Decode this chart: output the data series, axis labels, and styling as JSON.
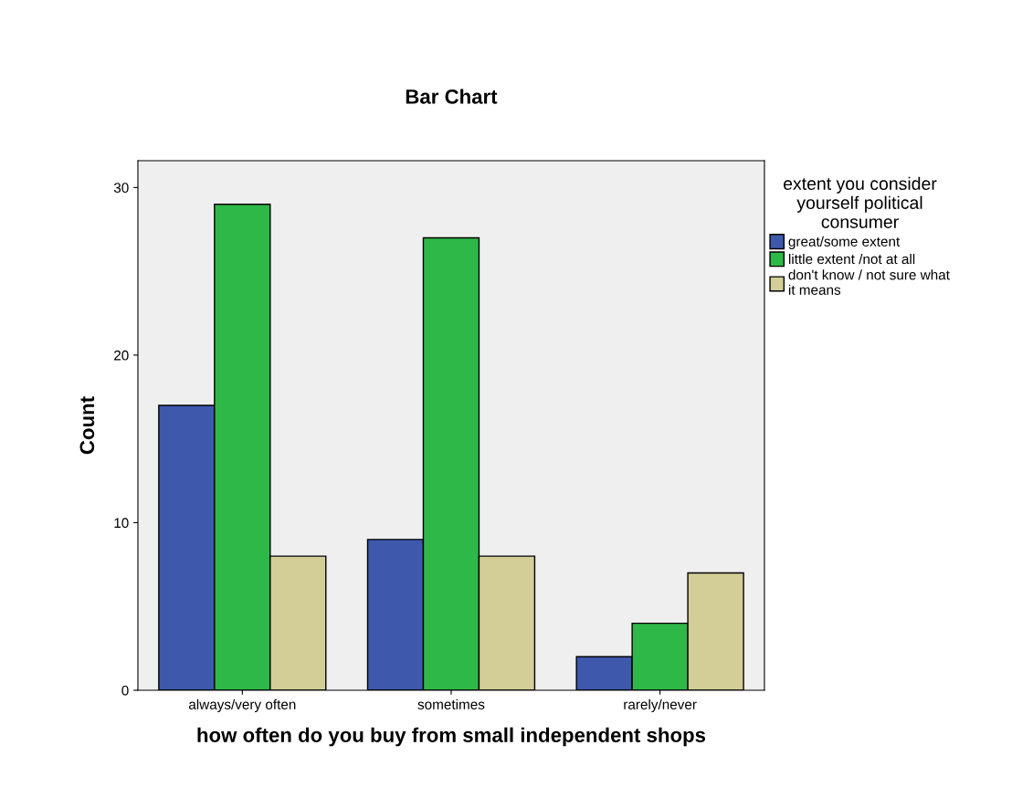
{
  "chart_data": {
    "type": "bar",
    "title": "Bar Chart",
    "xlabel": "how often do you buy from small independent shops",
    "ylabel": "Count",
    "legend_title": "extent you consider\nyourself political\nconsumer",
    "categories": [
      "always/very often",
      "sometimes",
      "rarely/never"
    ],
    "series": [
      {
        "name": "great/some extent",
        "color": "#3e58ac",
        "values": [
          17,
          9,
          2
        ]
      },
      {
        "name": "little extent /not at all",
        "color": "#2eb848",
        "values": [
          29,
          27,
          4
        ]
      },
      {
        "name": "don't know / not sure what\nit means",
        "color": "#d3ce97",
        "values": [
          8,
          8,
          7
        ]
      }
    ],
    "ylim": [
      0,
      31.6
    ],
    "yticks": [
      0,
      10,
      20,
      30
    ],
    "grid": false,
    "legend": "top right"
  }
}
